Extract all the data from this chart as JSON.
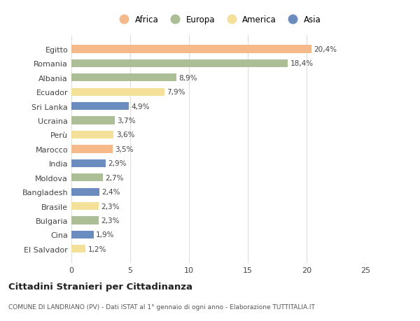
{
  "countries": [
    "Egitto",
    "Romania",
    "Albania",
    "Ecuador",
    "Sri Lanka",
    "Ucraina",
    "Perù",
    "Marocco",
    "India",
    "Moldova",
    "Bangladesh",
    "Brasile",
    "Bulgaria",
    "Cina",
    "El Salvador"
  ],
  "values": [
    20.4,
    18.4,
    8.9,
    7.9,
    4.9,
    3.7,
    3.6,
    3.5,
    2.9,
    2.7,
    2.4,
    2.3,
    2.3,
    1.9,
    1.2
  ],
  "categories": [
    "Africa",
    "Europa",
    "Europa",
    "America",
    "Asia",
    "Europa",
    "America",
    "Africa",
    "Asia",
    "Europa",
    "Asia",
    "America",
    "Europa",
    "Asia",
    "America"
  ],
  "colors": {
    "Africa": "#F5B98A",
    "Europa": "#ABBE96",
    "America": "#F5E09A",
    "Asia": "#6B8CBF"
  },
  "legend_order": [
    "Africa",
    "Europa",
    "America",
    "Asia"
  ],
  "title": "Cittadini Stranieri per Cittadinanza",
  "subtitle": "COMUNE DI LANDRIANO (PV) - Dati ISTAT al 1° gennaio di ogni anno - Elaborazione TUTTITALIA.IT",
  "xlim": [
    0,
    25
  ],
  "xticks": [
    0,
    5,
    10,
    15,
    20,
    25
  ],
  "bg_color": "#ffffff",
  "bar_bg_color": "#ffffff"
}
